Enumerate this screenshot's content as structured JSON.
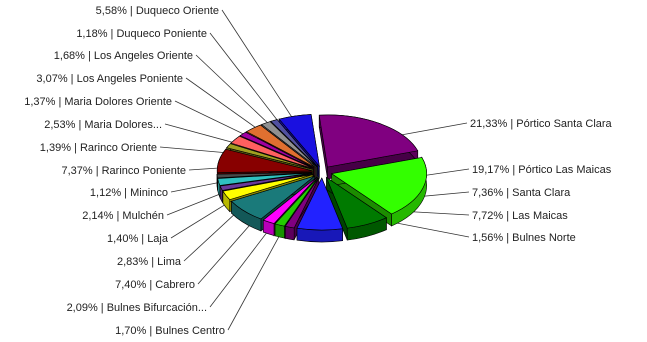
{
  "chart_data": {
    "type": "pie",
    "style": "3d-exploded",
    "legend": "none",
    "slices": [
      {
        "label": "21,33% | Pórtico Santa Clara",
        "value": 21.33,
        "name": "Pórtico Santa Clara",
        "color": "#800080"
      },
      {
        "label": "19,17% | Pórtico Las Maicas",
        "value": 19.17,
        "name": "Pórtico Las Maicas",
        "color": "#33ff00"
      },
      {
        "label": "7,36% | Santa Clara",
        "value": 7.36,
        "name": "Santa Clara",
        "color": "#007a00"
      },
      {
        "label": "7,72% | Las Maicas",
        "value": 7.72,
        "name": "Las Maicas",
        "color": "#2222ff"
      },
      {
        "label": "1,56% | Bulnes Norte",
        "value": 1.56,
        "name": "Bulnes Norte",
        "color": "#800080"
      },
      {
        "label": "1,70% | Bulnes Centro",
        "value": 1.7,
        "name": "Bulnes Centro",
        "color": "#22cc00"
      },
      {
        "label": "2,09% | Bulnes Bifurcación...",
        "value": 2.09,
        "name": "Bulnes Bifurcación...",
        "color": "#ff00ff"
      },
      {
        "label": "7,40% | Cabrero",
        "value": 7.4,
        "name": "Cabrero",
        "color": "#1a7a7a"
      },
      {
        "label": "2,83% | Lima",
        "value": 2.83,
        "name": "Lima",
        "color": "#ffff00"
      },
      {
        "label": "1,40% | Laja",
        "value": 1.4,
        "name": "Laja",
        "color": "#6a3a9a"
      },
      {
        "label": "2,14% | Mulchén",
        "value": 2.14,
        "name": "Mulchén",
        "color": "#30c0c0"
      },
      {
        "label": "1,12% | Mininco",
        "value": 1.12,
        "name": "Mininco",
        "color": "#4a4a4a"
      },
      {
        "label": "7,37% | Rarinco Poniente",
        "value": 7.37,
        "name": "Rarinco Poniente",
        "color": "#880000"
      },
      {
        "label": "1,39% | Rarinco Oriente",
        "value": 1.39,
        "name": "Rarinco Oriente",
        "color": "#a0a020"
      },
      {
        "label": "2,53% | Maria Dolores...",
        "value": 2.53,
        "name": "Maria Dolores...",
        "color": "#ff6060"
      },
      {
        "label": "1,37% | Maria Dolores Oriente",
        "value": 1.37,
        "name": "Maria Dolores Oriente",
        "color": "#a000a0"
      },
      {
        "label": "3,07% | Los Angeles Poniente",
        "value": 3.07,
        "name": "Los Angeles Poniente",
        "color": "#e07030"
      },
      {
        "label": "1,68% | Los Angeles Oriente",
        "value": 1.68,
        "name": "Los Angeles Oriente",
        "color": "#909090"
      },
      {
        "label": "1,18% | Duqueco Poniente",
        "value": 1.18,
        "name": "Duqueco Poniente",
        "color": "#5050a0"
      },
      {
        "label": "5,58% | Duqueco Oriente",
        "value": 5.58,
        "name": "Duqueco Oriente",
        "color": "#1a10e0"
      }
    ]
  }
}
